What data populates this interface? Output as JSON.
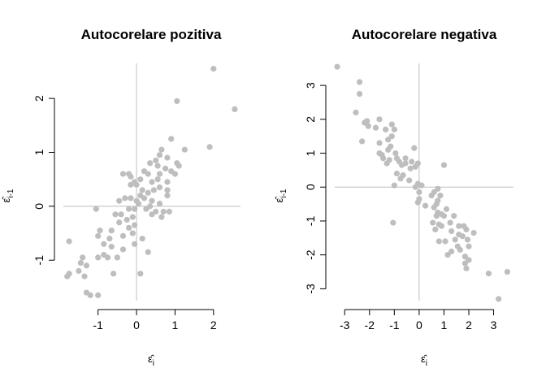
{
  "chart_data": [
    {
      "type": "scatter",
      "title": "Autocorelare pozitiva",
      "xlabel": "ε̂",
      "xlabel_sub": "i",
      "ylabel": "ε̂",
      "ylabel_sub": "i-1",
      "xlim": [
        -1.9,
        2.7
      ],
      "ylim": [
        -1.75,
        2.65
      ],
      "xticks": [
        -1,
        0,
        1,
        2
      ],
      "yticks": [
        -1,
        0,
        1,
        2
      ],
      "reference_lines": {
        "x": 0,
        "y": 0
      },
      "grid": false,
      "legend": "none",
      "point_color": "#bebebe",
      "points": [
        [
          2.0,
          2.55
        ],
        [
          2.55,
          1.8
        ],
        [
          1.05,
          1.95
        ],
        [
          1.9,
          1.1
        ],
        [
          1.25,
          1.05
        ],
        [
          0.9,
          1.25
        ],
        [
          0.65,
          1.05
        ],
        [
          0.6,
          0.95
        ],
        [
          0.8,
          0.9
        ],
        [
          0.5,
          0.85
        ],
        [
          0.35,
          0.8
        ],
        [
          1.05,
          0.8
        ],
        [
          1.1,
          0.75
        ],
        [
          0.55,
          0.75
        ],
        [
          0.75,
          0.7
        ],
        [
          0.9,
          0.65
        ],
        [
          0.2,
          0.65
        ],
        [
          0.3,
          0.6
        ],
        [
          0.6,
          0.6
        ],
        [
          1.0,
          0.6
        ],
        [
          -0.35,
          0.6
        ],
        [
          -0.2,
          0.6
        ],
        [
          -0.15,
          0.55
        ],
        [
          -0.05,
          0.45
        ],
        [
          0.0,
          0.4
        ],
        [
          -0.15,
          0.4
        ],
        [
          0.1,
          0.5
        ],
        [
          0.4,
          0.45
        ],
        [
          0.55,
          0.5
        ],
        [
          0.8,
          0.45
        ],
        [
          0.6,
          0.35
        ],
        [
          0.45,
          0.3
        ],
        [
          0.8,
          0.3
        ],
        [
          0.15,
          0.3
        ],
        [
          0.3,
          0.25
        ],
        [
          0.1,
          0.2
        ],
        [
          0.2,
          0.15
        ],
        [
          -0.15,
          0.15
        ],
        [
          0.8,
          0.2
        ],
        [
          -0.45,
          0.1
        ],
        [
          -0.3,
          0.15
        ],
        [
          0.0,
          0.1
        ],
        [
          0.05,
          0.05
        ],
        [
          0.4,
          0.1
        ],
        [
          0.6,
          0.05
        ],
        [
          0.35,
          0.0
        ],
        [
          0.25,
          -0.05
        ],
        [
          -0.05,
          -0.05
        ],
        [
          -0.2,
          -0.05
        ],
        [
          -1.05,
          -0.05
        ],
        [
          0.5,
          -0.1
        ],
        [
          0.7,
          -0.1
        ],
        [
          0.85,
          -0.1
        ],
        [
          0.4,
          -0.15
        ],
        [
          -0.4,
          -0.15
        ],
        [
          -0.55,
          -0.15
        ],
        [
          0.65,
          -0.2
        ],
        [
          -0.1,
          -0.2
        ],
        [
          -0.25,
          -0.25
        ],
        [
          -0.45,
          -0.3
        ],
        [
          -0.05,
          -0.35
        ],
        [
          -0.2,
          -0.4
        ],
        [
          -0.95,
          -0.45
        ],
        [
          -0.65,
          -0.45
        ],
        [
          -0.35,
          -0.55
        ],
        [
          -0.1,
          -0.5
        ],
        [
          -1.0,
          -0.55
        ],
        [
          -0.7,
          -0.6
        ],
        [
          0.15,
          -0.6
        ],
        [
          -0.05,
          -0.7
        ],
        [
          -0.65,
          -0.75
        ],
        [
          -0.85,
          -0.7
        ],
        [
          -1.75,
          -0.65
        ],
        [
          -0.35,
          -0.8
        ],
        [
          0.3,
          -0.85
        ],
        [
          -0.85,
          -0.9
        ],
        [
          -1.0,
          -0.95
        ],
        [
          -0.5,
          -0.95
        ],
        [
          -0.75,
          -0.95
        ],
        [
          -1.4,
          -0.95
        ],
        [
          -1.45,
          -1.05
        ],
        [
          -1.3,
          -1.1
        ],
        [
          -1.5,
          -1.2
        ],
        [
          -0.6,
          -1.25
        ],
        [
          0.1,
          -1.25
        ],
        [
          -1.75,
          -1.25
        ],
        [
          -1.8,
          -1.3
        ],
        [
          -1.35,
          -1.3
        ],
        [
          -1.3,
          -1.6
        ],
        [
          -1.2,
          -1.65
        ],
        [
          -1.0,
          -1.65
        ]
      ]
    },
    {
      "type": "scatter",
      "title": "Autocorelare negativa",
      "xlabel": "ε̂",
      "xlabel_sub": "i",
      "ylabel": "ε̂",
      "ylabel_sub": "i-1",
      "xlim": [
        -3.4,
        3.8
      ],
      "ylim": [
        -3.35,
        3.65
      ],
      "xticks": [
        -3,
        -2,
        -1,
        0,
        1,
        2,
        3
      ],
      "yticks": [
        -3,
        -2,
        -1,
        0,
        1,
        2,
        3
      ],
      "reference_lines": {
        "x": 0,
        "y": 0
      },
      "grid": false,
      "legend": "none",
      "point_color": "#bebebe",
      "points": [
        [
          -3.3,
          3.55
        ],
        [
          -2.4,
          3.1
        ],
        [
          -2.4,
          2.75
        ],
        [
          -2.55,
          2.2
        ],
        [
          -2.1,
          1.95
        ],
        [
          -1.6,
          2.0
        ],
        [
          -2.2,
          1.9
        ],
        [
          -2.05,
          1.8
        ],
        [
          -1.1,
          1.85
        ],
        [
          -1.75,
          1.75
        ],
        [
          -1.35,
          1.7
        ],
        [
          -1.0,
          1.7
        ],
        [
          -1.1,
          1.5
        ],
        [
          -1.25,
          1.4
        ],
        [
          -2.3,
          1.35
        ],
        [
          -1.6,
          1.3
        ],
        [
          -1.15,
          1.2
        ],
        [
          -0.2,
          1.15
        ],
        [
          -1.25,
          1.1
        ],
        [
          -0.95,
          1.0
        ],
        [
          -1.6,
          1.0
        ],
        [
          -1.5,
          0.95
        ],
        [
          -1.45,
          0.85
        ],
        [
          -0.55,
          0.85
        ],
        [
          -0.9,
          0.85
        ],
        [
          -1.2,
          0.8
        ],
        [
          -0.8,
          0.75
        ],
        [
          -0.3,
          0.75
        ],
        [
          -0.55,
          0.7
        ],
        [
          -0.05,
          0.7
        ],
        [
          -1.3,
          0.7
        ],
        [
          -0.15,
          0.6
        ],
        [
          -0.7,
          0.65
        ],
        [
          -0.35,
          0.55
        ],
        [
          1.0,
          0.65
        ],
        [
          -0.9,
          0.4
        ],
        [
          -0.65,
          0.35
        ],
        [
          -0.75,
          0.25
        ],
        [
          -0.4,
          0.2
        ],
        [
          -0.05,
          0.1
        ],
        [
          -1.0,
          0.05
        ],
        [
          0.1,
          0.05
        ],
        [
          -0.15,
          0.0
        ],
        [
          0.0,
          -0.15
        ],
        [
          0.75,
          -0.05
        ],
        [
          0.6,
          -0.15
        ],
        [
          0.5,
          -0.25
        ],
        [
          0.85,
          -0.25
        ],
        [
          0.0,
          -0.35
        ],
        [
          -0.05,
          -0.45
        ],
        [
          0.75,
          -0.4
        ],
        [
          0.7,
          -0.5
        ],
        [
          0.25,
          -0.55
        ],
        [
          0.6,
          -0.6
        ],
        [
          1.1,
          -0.65
        ],
        [
          0.75,
          -0.75
        ],
        [
          0.9,
          -0.8
        ],
        [
          0.7,
          -0.85
        ],
        [
          1.0,
          -0.85
        ],
        [
          1.4,
          -0.85
        ],
        [
          0.55,
          -1.05
        ],
        [
          -1.05,
          -1.05
        ],
        [
          0.8,
          -1.1
        ],
        [
          0.9,
          -1.15
        ],
        [
          1.25,
          -1.05
        ],
        [
          1.6,
          -1.15
        ],
        [
          1.8,
          -1.15
        ],
        [
          1.9,
          -1.25
        ],
        [
          0.65,
          -1.25
        ],
        [
          1.3,
          -1.3
        ],
        [
          2.2,
          -1.35
        ],
        [
          1.6,
          -1.4
        ],
        [
          1.75,
          -1.45
        ],
        [
          1.45,
          -1.55
        ],
        [
          1.95,
          -1.55
        ],
        [
          1.05,
          -1.6
        ],
        [
          0.8,
          -1.6
        ],
        [
          1.55,
          -1.75
        ],
        [
          2.0,
          -1.75
        ],
        [
          1.65,
          -1.85
        ],
        [
          1.3,
          -1.9
        ],
        [
          1.15,
          -2.0
        ],
        [
          1.85,
          -2.05
        ],
        [
          2.0,
          -2.15
        ],
        [
          1.85,
          -2.25
        ],
        [
          1.9,
          -2.4
        ],
        [
          2.8,
          -2.55
        ],
        [
          3.55,
          -2.5
        ],
        [
          3.2,
          -3.3
        ]
      ]
    }
  ]
}
